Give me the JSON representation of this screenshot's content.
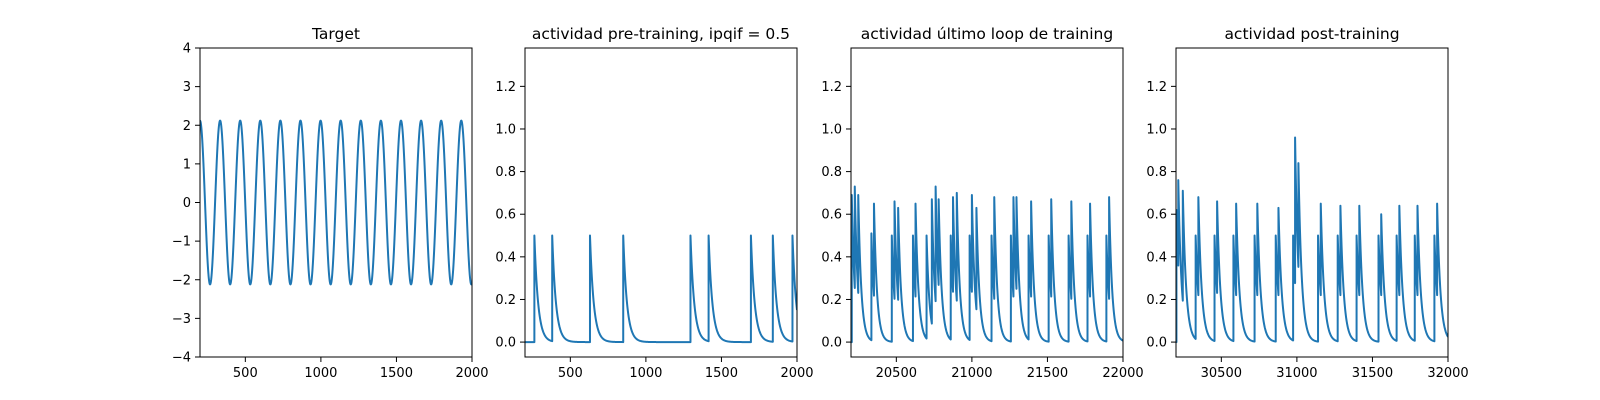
{
  "figure": {
    "line_color": "#1f77b4",
    "axes_color": "#000000",
    "background": "#ffffff"
  },
  "chart_data": [
    {
      "type": "line",
      "title": "Target",
      "xlabel": "",
      "ylabel": "",
      "xlim": [
        200,
        2000
      ],
      "ylim": [
        -4,
        4
      ],
      "xticks": [
        500,
        1000,
        1500,
        2000
      ],
      "yticks": [
        -4,
        -3,
        -2,
        -1,
        0,
        1,
        2,
        3,
        4
      ],
      "xtick_labels": [
        "500",
        "1000",
        "1500",
        "2000"
      ],
      "ytick_labels": [
        "−4",
        "−3",
        "−2",
        "−1",
        "0",
        "1",
        "2",
        "3",
        "4"
      ],
      "grid": false,
      "series": [
        {
          "kind": "sinusoid",
          "amplitude": 2.12,
          "period": 133,
          "phase_at_xmin": 0,
          "x_start": 200,
          "x_end": 2000
        }
      ]
    },
    {
      "type": "line",
      "title": "actividad pre-training, ipqif = 0.5",
      "xlabel": "",
      "ylabel": "",
      "xlim": [
        200,
        2000
      ],
      "ylim": [
        -0.07,
        1.38
      ],
      "xticks": [
        500,
        1000,
        1500,
        2000
      ],
      "yticks": [
        0.0,
        0.2,
        0.4,
        0.6,
        0.8,
        1.0,
        1.2
      ],
      "xtick_labels": [
        "500",
        "1000",
        "1500",
        "2000"
      ],
      "ytick_labels": [
        "0.0",
        "0.2",
        "0.4",
        "0.6",
        "0.8",
        "1.0",
        "1.2"
      ],
      "grid": false,
      "series": [
        {
          "kind": "spike_train",
          "x_start": 200,
          "x_end": 2000,
          "baseline": 0.0,
          "decay": 25,
          "spikes": [
            {
              "x": 262,
              "peak": 0.5
            },
            {
              "x": 380,
              "peak": 0.5
            },
            {
              "x": 630,
              "peak": 0.5
            },
            {
              "x": 850,
              "peak": 0.5
            },
            {
              "x": 1295,
              "peak": 0.5
            },
            {
              "x": 1415,
              "peak": 0.5
            },
            {
              "x": 1695,
              "peak": 0.5
            },
            {
              "x": 1840,
              "peak": 0.5
            },
            {
              "x": 1970,
              "peak": 0.5
            }
          ]
        }
      ]
    },
    {
      "type": "line",
      "title": "actividad último loop de training",
      "xlabel": "",
      "ylabel": "",
      "xlim": [
        20200,
        22000
      ],
      "ylim": [
        -0.07,
        1.38
      ],
      "xticks": [
        20500,
        21000,
        21500,
        22000
      ],
      "yticks": [
        0.0,
        0.2,
        0.4,
        0.6,
        0.8,
        1.0,
        1.2
      ],
      "xtick_labels": [
        "20500",
        "21000",
        "21500",
        "22000"
      ],
      "ytick_labels": [
        "0.0",
        "0.2",
        "0.4",
        "0.6",
        "0.8",
        "1.0",
        "1.2"
      ],
      "grid": false,
      "series": [
        {
          "kind": "spike_train",
          "x_start": 20200,
          "x_end": 22000,
          "baseline": 0.0,
          "decay": 20,
          "spikes": [
            {
              "x": 20205,
              "peak": 0.69
            },
            {
              "x": 20225,
              "peak": 0.73
            },
            {
              "x": 20248,
              "peak": 0.69
            },
            {
              "x": 20335,
              "peak": 0.51
            },
            {
              "x": 20352,
              "peak": 0.65
            },
            {
              "x": 20470,
              "peak": 0.5
            },
            {
              "x": 20488,
              "peak": 0.66
            },
            {
              "x": 20512,
              "peak": 0.63
            },
            {
              "x": 20610,
              "peak": 0.5
            },
            {
              "x": 20627,
              "peak": 0.65
            },
            {
              "x": 20700,
              "peak": 0.5
            },
            {
              "x": 20735,
              "peak": 0.67
            },
            {
              "x": 20760,
              "peak": 0.73
            },
            {
              "x": 20780,
              "peak": 0.67
            },
            {
              "x": 20860,
              "peak": 0.5
            },
            {
              "x": 20875,
              "peak": 0.68
            },
            {
              "x": 20900,
              "peak": 0.7
            },
            {
              "x": 20985,
              "peak": 0.5
            },
            {
              "x": 21000,
              "peak": 0.69
            },
            {
              "x": 21030,
              "peak": 0.63
            },
            {
              "x": 21130,
              "peak": 0.5
            },
            {
              "x": 21148,
              "peak": 0.68
            },
            {
              "x": 21258,
              "peak": 0.5
            },
            {
              "x": 21275,
              "peak": 0.68
            },
            {
              "x": 21295,
              "peak": 0.68
            },
            {
              "x": 21375,
              "peak": 0.5
            },
            {
              "x": 21392,
              "peak": 0.66
            },
            {
              "x": 21508,
              "peak": 0.5
            },
            {
              "x": 21525,
              "peak": 0.67
            },
            {
              "x": 21640,
              "peak": 0.5
            },
            {
              "x": 21658,
              "peak": 0.66
            },
            {
              "x": 21765,
              "peak": 0.5
            },
            {
              "x": 21782,
              "peak": 0.65
            },
            {
              "x": 21890,
              "peak": 0.5
            },
            {
              "x": 21908,
              "peak": 0.68
            }
          ]
        }
      ]
    },
    {
      "type": "line",
      "title": "actividad post-training",
      "xlabel": "",
      "ylabel": "",
      "xlim": [
        30200,
        32000
      ],
      "ylim": [
        -0.07,
        1.38
      ],
      "xticks": [
        30500,
        31000,
        31500,
        32000
      ],
      "yticks": [
        0.0,
        0.2,
        0.4,
        0.6,
        0.8,
        1.0,
        1.2
      ],
      "xtick_labels": [
        "30500",
        "31000",
        "31500",
        "32000"
      ],
      "ytick_labels": [
        "0.0",
        "0.2",
        "0.4",
        "0.6",
        "0.8",
        "1.0",
        "1.2"
      ],
      "grid": false,
      "series": [
        {
          "kind": "spike_train",
          "x_start": 30200,
          "x_end": 32000,
          "baseline": 0.0,
          "decay": 22,
          "spikes": [
            {
              "x": 30203,
              "peak": 0.62
            },
            {
              "x": 30215,
              "peak": 0.76
            },
            {
              "x": 30245,
              "peak": 0.71
            },
            {
              "x": 30330,
              "peak": 0.5
            },
            {
              "x": 30348,
              "peak": 0.68
            },
            {
              "x": 30455,
              "peak": 0.5
            },
            {
              "x": 30472,
              "peak": 0.66
            },
            {
              "x": 30580,
              "peak": 0.5
            },
            {
              "x": 30598,
              "peak": 0.65
            },
            {
              "x": 30720,
              "peak": 0.5
            },
            {
              "x": 30738,
              "peak": 0.65
            },
            {
              "x": 30860,
              "peak": 0.5
            },
            {
              "x": 30878,
              "peak": 0.63
            },
            {
              "x": 30975,
              "peak": 0.5
            },
            {
              "x": 30988,
              "peak": 0.96
            },
            {
              "x": 31010,
              "peak": 0.84
            },
            {
              "x": 31140,
              "peak": 0.5
            },
            {
              "x": 31158,
              "peak": 0.65
            },
            {
              "x": 31270,
              "peak": 0.5
            },
            {
              "x": 31288,
              "peak": 0.64
            },
            {
              "x": 31395,
              "peak": 0.5
            },
            {
              "x": 31413,
              "peak": 0.64
            },
            {
              "x": 31540,
              "peak": 0.5
            },
            {
              "x": 31558,
              "peak": 0.6
            },
            {
              "x": 31660,
              "peak": 0.5
            },
            {
              "x": 31678,
              "peak": 0.64
            },
            {
              "x": 31780,
              "peak": 0.5
            },
            {
              "x": 31798,
              "peak": 0.64
            },
            {
              "x": 31910,
              "peak": 0.5
            },
            {
              "x": 31928,
              "peak": 0.65
            }
          ]
        }
      ]
    }
  ]
}
